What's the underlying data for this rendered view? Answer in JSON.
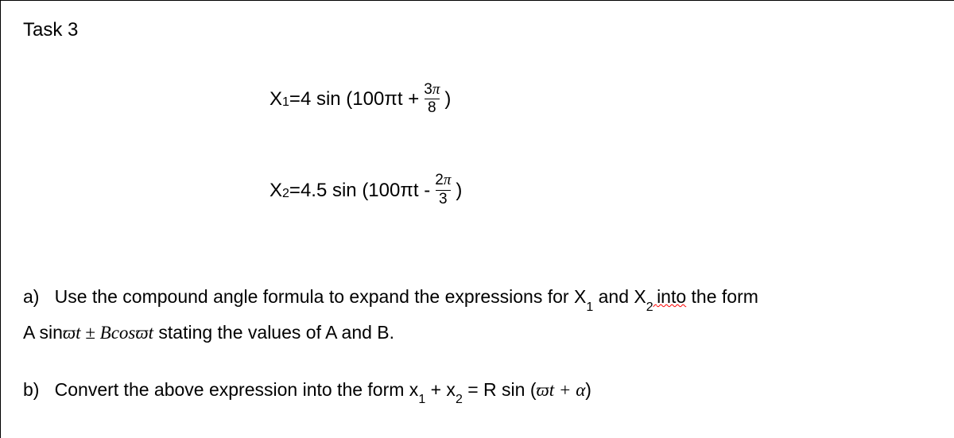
{
  "task": {
    "title": "Task 3"
  },
  "equations": {
    "eq1": {
      "lhs_var": "X",
      "lhs_sub": "1",
      "eq_sign": " = ",
      "coef": "4 sin (100πt + ",
      "frac_num": "3",
      "frac_pi": "π",
      "frac_den": "8",
      "close": " )"
    },
    "eq2": {
      "lhs_var": "X",
      "lhs_sub": "2",
      "eq_sign": " = ",
      "coef": "4.5 sin (100πt - ",
      "frac_num": "2",
      "frac_pi": "π",
      "frac_den": "3",
      "close": " )"
    }
  },
  "parts": {
    "a": {
      "label": "a)",
      "text1": "Use the compound angle formula to expand the expressions for X",
      "sub1": "1",
      "text2": " and X",
      "sub2": "2 ",
      "into": " into",
      "text3": " the form",
      "line2_pre": "A sin",
      "varpi1": "ϖ",
      "t1": "t",
      "pm": " ± ",
      "Bcos": "Bcos",
      "varpi2": "ϖ",
      "t2": "t",
      "line2_post": " stating the values of A and B."
    },
    "b": {
      "label": "b)",
      "text1": "Convert the above expression into the form x",
      "sub1": "1",
      "text2": " + x",
      "sub2": "2",
      "text3": " = R sin (",
      "varpi": "ϖ",
      "t": "t",
      "plus": " + ",
      "alpha": "α",
      "close": ")"
    }
  }
}
